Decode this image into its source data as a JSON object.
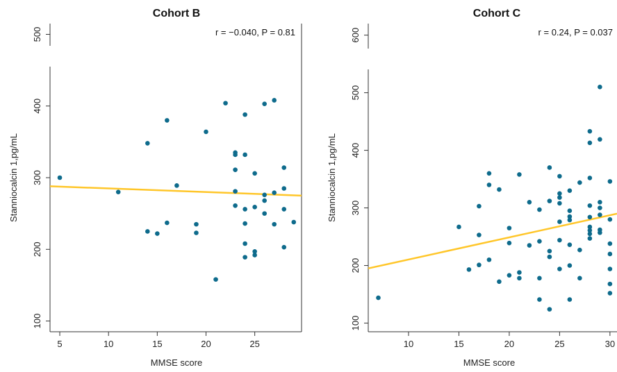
{
  "chart_data": [
    {
      "type": "scatter",
      "title": "Cohort B",
      "xlabel": "MMSE score",
      "ylabel": "Stanniocalcin 1,pg/mL",
      "annotation": "r = −0.040, P = 0.81",
      "xlim": [
        4,
        29.8
      ],
      "ylim": [
        85,
        515
      ],
      "xticks": [
        5,
        10,
        15,
        20,
        25
      ],
      "yticks": [
        100,
        200,
        300,
        400,
        500
      ],
      "marker_color": "#0e6b8c",
      "fit_color": "#ffc629",
      "fit_line": {
        "x": [
          4,
          29.8
        ],
        "y": [
          288,
          275
        ]
      },
      "points": [
        [
          5,
          300
        ],
        [
          11,
          280
        ],
        [
          14,
          348
        ],
        [
          14,
          225
        ],
        [
          15,
          222
        ],
        [
          16,
          380
        ],
        [
          16,
          237
        ],
        [
          17,
          289
        ],
        [
          19,
          235
        ],
        [
          19,
          223
        ],
        [
          20,
          364
        ],
        [
          21,
          158
        ],
        [
          22,
          404
        ],
        [
          23,
          335
        ],
        [
          23,
          332
        ],
        [
          23,
          311
        ],
        [
          23,
          281
        ],
        [
          23,
          261
        ],
        [
          24,
          388
        ],
        [
          24,
          332
        ],
        [
          24,
          256
        ],
        [
          24,
          236
        ],
        [
          24,
          208
        ],
        [
          24,
          189
        ],
        [
          25,
          306
        ],
        [
          25,
          259
        ],
        [
          25,
          197
        ],
        [
          25,
          192
        ],
        [
          26,
          403
        ],
        [
          26,
          276
        ],
        [
          26,
          268
        ],
        [
          26,
          250
        ],
        [
          27,
          408
        ],
        [
          27,
          279
        ],
        [
          27,
          235
        ],
        [
          28,
          314
        ],
        [
          28,
          285
        ],
        [
          28,
          256
        ],
        [
          28,
          203
        ],
        [
          29,
          238
        ]
      ]
    },
    {
      "type": "scatter",
      "title": "Cohort C",
      "xlabel": "MMSE score",
      "ylabel": "Stanniocalcin 1,pg/mL",
      "annotation": "r = 0.24, P = 0.037",
      "xlim": [
        6,
        30.7
      ],
      "ylim": [
        85,
        620
      ],
      "xticks": [
        10,
        15,
        20,
        25,
        30
      ],
      "yticks": [
        100,
        200,
        300,
        400,
        500,
        600
      ],
      "marker_color": "#0e6b8c",
      "fit_color": "#ffc629",
      "fit_line": {
        "x": [
          6,
          30.7
        ],
        "y": [
          195,
          290
        ]
      },
      "points": [
        [
          7,
          144
        ],
        [
          15,
          267
        ],
        [
          16,
          193
        ],
        [
          17,
          303
        ],
        [
          17,
          253
        ],
        [
          17,
          201
        ],
        [
          18,
          360
        ],
        [
          18,
          340
        ],
        [
          18,
          210
        ],
        [
          19,
          332
        ],
        [
          19,
          172
        ],
        [
          20,
          265
        ],
        [
          20,
          239
        ],
        [
          20,
          183
        ],
        [
          21,
          358
        ],
        [
          21,
          188
        ],
        [
          21,
          178
        ],
        [
          22,
          310
        ],
        [
          22,
          235
        ],
        [
          23,
          297
        ],
        [
          23,
          242
        ],
        [
          23,
          178
        ],
        [
          23,
          141
        ],
        [
          24,
          370
        ],
        [
          24,
          312
        ],
        [
          24,
          225
        ],
        [
          24,
          215
        ],
        [
          24,
          124
        ],
        [
          25,
          355
        ],
        [
          25,
          325
        ],
        [
          25,
          318
        ],
        [
          25,
          308
        ],
        [
          25,
          276
        ],
        [
          25,
          244
        ],
        [
          25,
          194
        ],
        [
          26,
          330
        ],
        [
          26,
          295
        ],
        [
          26,
          285
        ],
        [
          26,
          279
        ],
        [
          26,
          236
        ],
        [
          26,
          200
        ],
        [
          26,
          141
        ],
        [
          27,
          344
        ],
        [
          27,
          227
        ],
        [
          27,
          178
        ],
        [
          28,
          433
        ],
        [
          28,
          413
        ],
        [
          28,
          352
        ],
        [
          28,
          304
        ],
        [
          28,
          284
        ],
        [
          28,
          267
        ],
        [
          28,
          261
        ],
        [
          28,
          255
        ],
        [
          28,
          247
        ],
        [
          29,
          510
        ],
        [
          29,
          419
        ],
        [
          29,
          310
        ],
        [
          29,
          300
        ],
        [
          29,
          288
        ],
        [
          29,
          262
        ],
        [
          29,
          257
        ],
        [
          30,
          346
        ],
        [
          30,
          280
        ],
        [
          30,
          238
        ],
        [
          30,
          220
        ],
        [
          30,
          194
        ],
        [
          30,
          168
        ],
        [
          30,
          152
        ]
      ]
    }
  ]
}
